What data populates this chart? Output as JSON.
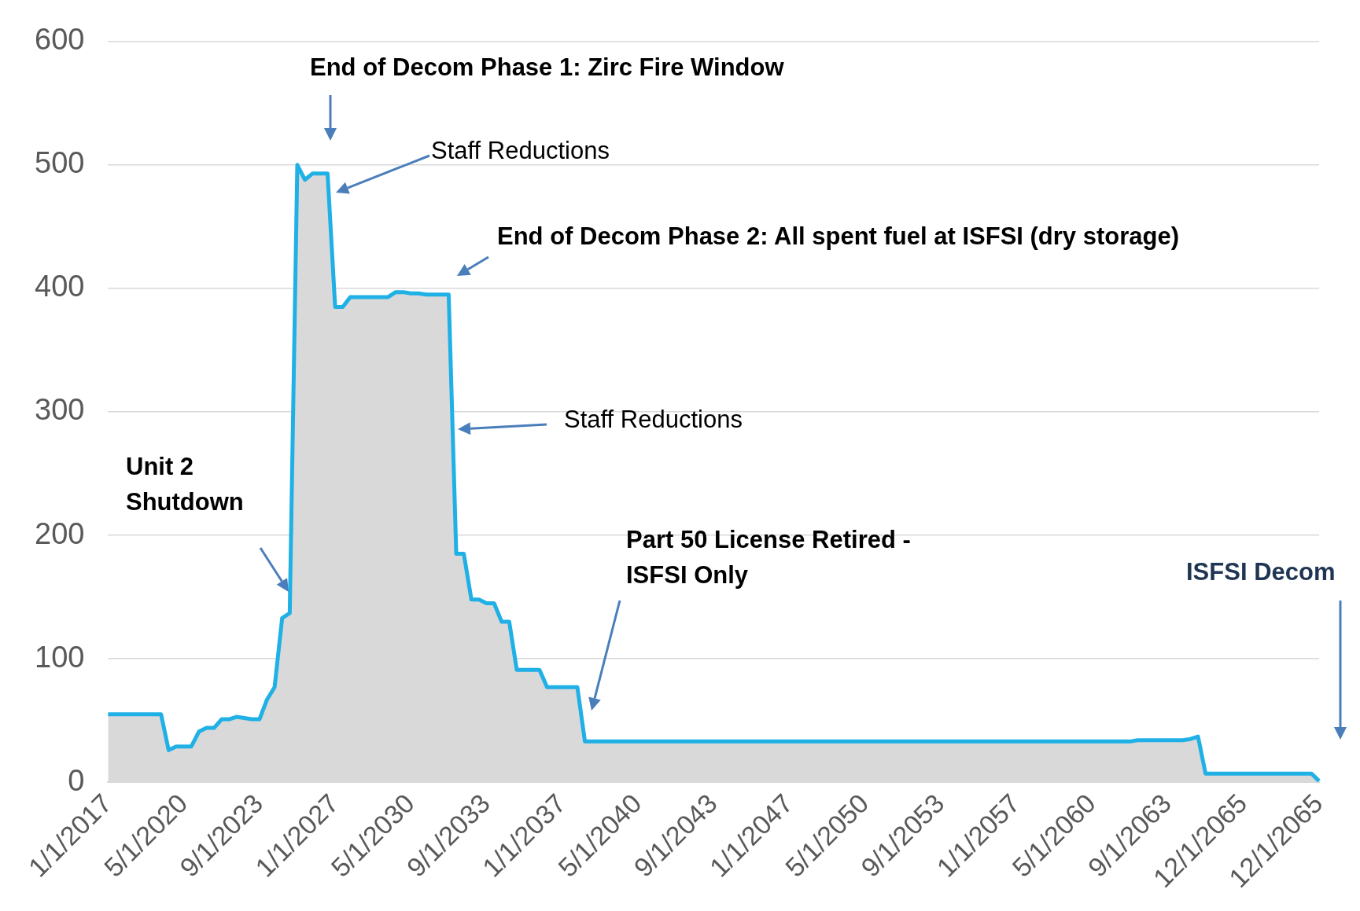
{
  "chart_data": {
    "type": "area",
    "categories": [
      "1/1/2017",
      null,
      null,
      null,
      null,
      null,
      null,
      null,
      null,
      null,
      "5/1/2020",
      null,
      null,
      null,
      null,
      null,
      null,
      null,
      null,
      null,
      "9/1/2023",
      null,
      null,
      null,
      null,
      null,
      null,
      null,
      null,
      null,
      "1/1/2027",
      null,
      null,
      null,
      null,
      null,
      null,
      null,
      null,
      null,
      "5/1/2030",
      null,
      null,
      null,
      null,
      null,
      null,
      null,
      null,
      null,
      "9/1/2033",
      null,
      null,
      null,
      null,
      null,
      null,
      null,
      null,
      null,
      "1/1/2037",
      null,
      null,
      null,
      null,
      null,
      null,
      null,
      null,
      null,
      "5/1/2040",
      null,
      null,
      null,
      null,
      null,
      null,
      null,
      null,
      null,
      "9/1/2043",
      null,
      null,
      null,
      null,
      null,
      null,
      null,
      null,
      null,
      "1/1/2047",
      null,
      null,
      null,
      null,
      null,
      null,
      null,
      null,
      null,
      "5/1/2050",
      null,
      null,
      null,
      null,
      null,
      null,
      null,
      null,
      null,
      "9/1/2053",
      null,
      null,
      null,
      null,
      null,
      null,
      null,
      null,
      null,
      "1/1/2057",
      null,
      null,
      null,
      null,
      null,
      null,
      null,
      null,
      null,
      "5/1/2060",
      null,
      null,
      null,
      null,
      null,
      null,
      null,
      null,
      null,
      "9/1/2063",
      null,
      null,
      null,
      null,
      null,
      null,
      null,
      null,
      null,
      "12/1/2065",
      null,
      null,
      null,
      null,
      null,
      null,
      null,
      null,
      null,
      "12/1/2065"
    ],
    "series": [
      {
        "color": "#1fb0e6",
        "values": [
          55,
          55,
          55,
          55,
          55,
          55,
          55,
          55,
          26,
          29,
          29,
          29,
          41,
          44,
          44,
          51,
          51,
          53,
          52,
          51,
          51,
          67,
          77,
          133,
          137,
          500,
          488,
          493,
          493,
          493,
          385,
          385,
          393,
          393,
          393,
          393,
          393,
          393,
          397,
          397,
          396,
          396,
          395,
          395,
          395,
          395,
          185,
          185,
          148,
          148,
          145,
          145,
          130,
          130,
          91,
          91,
          91,
          91,
          77,
          77,
          77,
          77,
          77,
          33,
          33,
          33,
          33,
          33,
          33,
          33,
          33,
          33,
          33,
          33,
          33,
          33,
          33,
          33,
          33,
          33,
          33,
          33,
          33,
          33,
          33,
          33,
          33,
          33,
          33,
          33,
          33,
          33,
          33,
          33,
          33,
          33,
          33,
          33,
          33,
          33,
          33,
          33,
          33,
          33,
          33,
          33,
          33,
          33,
          33,
          33,
          33,
          33,
          33,
          33,
          33,
          33,
          33,
          33,
          33,
          33,
          33,
          33,
          33,
          33,
          33,
          33,
          33,
          33,
          33,
          33,
          33,
          33,
          33,
          33,
          33,
          33,
          34,
          34,
          34,
          34,
          34,
          34,
          34,
          35,
          37,
          7,
          7,
          7,
          7,
          7,
          7,
          7,
          7,
          7,
          7,
          7,
          7,
          7,
          7,
          7,
          1
        ]
      }
    ],
    "ylim": [
      0,
      600
    ],
    "yticks": [
      0,
      100,
      200,
      300,
      400,
      500,
      600
    ],
    "grid": "y",
    "annotations": [
      "End of Decom Phase 1: Zirc Fire Window",
      "Staff Reductions",
      "End of Decom Phase 2: All spent fuel at ISFSI (dry storage)",
      "Staff Reductions",
      "Unit 2 Shutdown",
      "Part 50 License Retired - ISFSI Only",
      "ISFSI Decom"
    ]
  }
}
